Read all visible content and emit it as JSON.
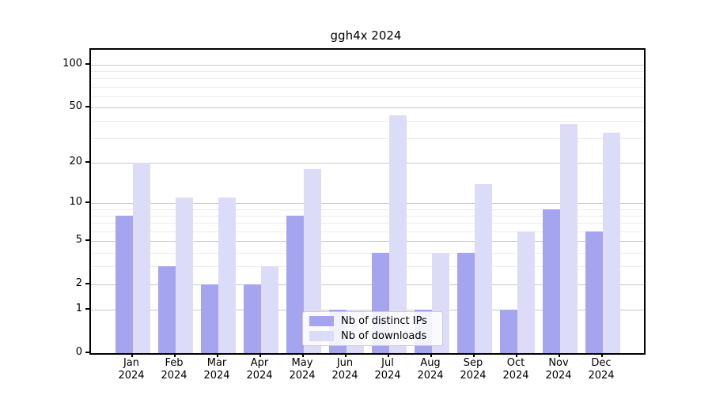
{
  "title": "ggh4x 2024",
  "legend": {
    "items": [
      {
        "label": "Nb of distinct IPs",
        "color": "#a5a5ef"
      },
      {
        "label": "Nb of downloads",
        "color": "#dcdcf8"
      }
    ]
  },
  "colors": {
    "series_dark": "#a5a5ef",
    "series_light": "#dcdcf8",
    "grid_major": "#c9c9c9",
    "grid_minor": "#ececec",
    "spine": "#000000",
    "background": "#ffffff"
  },
  "chart_data": {
    "type": "bar",
    "title": "ggh4x 2024",
    "categories": [
      "Jan",
      "Feb",
      "Mar",
      "Apr",
      "May",
      "Jun",
      "Jul",
      "Aug",
      "Sep",
      "Oct",
      "Nov",
      "Dec"
    ],
    "category_year": "2024",
    "series": [
      {
        "name": "Nb of distinct IPs",
        "color": "#a5a5ef",
        "values": [
          8,
          3,
          2,
          2,
          8,
          1,
          4,
          1,
          4,
          1,
          9,
          6
        ]
      },
      {
        "name": "Nb of downloads",
        "color": "#dcdcf8",
        "values": [
          20,
          11,
          11,
          3,
          18,
          1,
          44,
          4,
          14,
          6,
          38,
          33
        ]
      }
    ],
    "xlabel": "",
    "ylabel": "",
    "yscale": "log1p",
    "ylim": [
      0,
      126
    ],
    "y_major_ticks": [
      0,
      1,
      2,
      5,
      10,
      20,
      50,
      100
    ],
    "y_minor_ticks": [
      3,
      4,
      6,
      7,
      8,
      9,
      30,
      40,
      60,
      70,
      80,
      90
    ],
    "grid": true,
    "legend_position": "inside-bottom-center"
  }
}
